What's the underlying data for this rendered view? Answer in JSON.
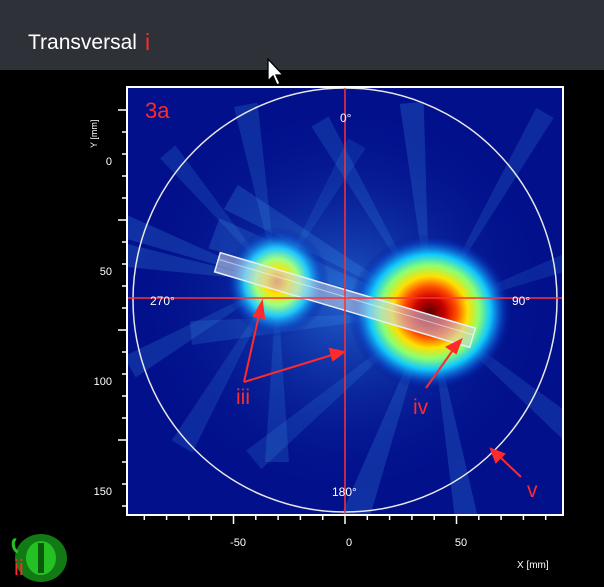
{
  "header": {
    "title": "Transversal",
    "label": "i"
  },
  "plot": {
    "panel_label": "3a",
    "y_axis_label": "Y [mm]",
    "x_axis_label": "X [mm]",
    "x_ticks": [
      "-50",
      "0",
      "50"
    ],
    "y_ticks": [
      "0",
      "50",
      "100",
      "150"
    ],
    "angle_top": "0°",
    "angle_right": "90°",
    "angle_bottom": "180°",
    "angle_left": "270°"
  },
  "annotations": {
    "iii": "iii",
    "iv": "iv",
    "v": "v",
    "ii": "ii"
  },
  "colors": {
    "header_bg": "#2e3238",
    "plot_bg": "#02108c",
    "crosshair": "#ff3030",
    "annotation": "#ff2a2a",
    "circle": "#e8e8e8"
  }
}
